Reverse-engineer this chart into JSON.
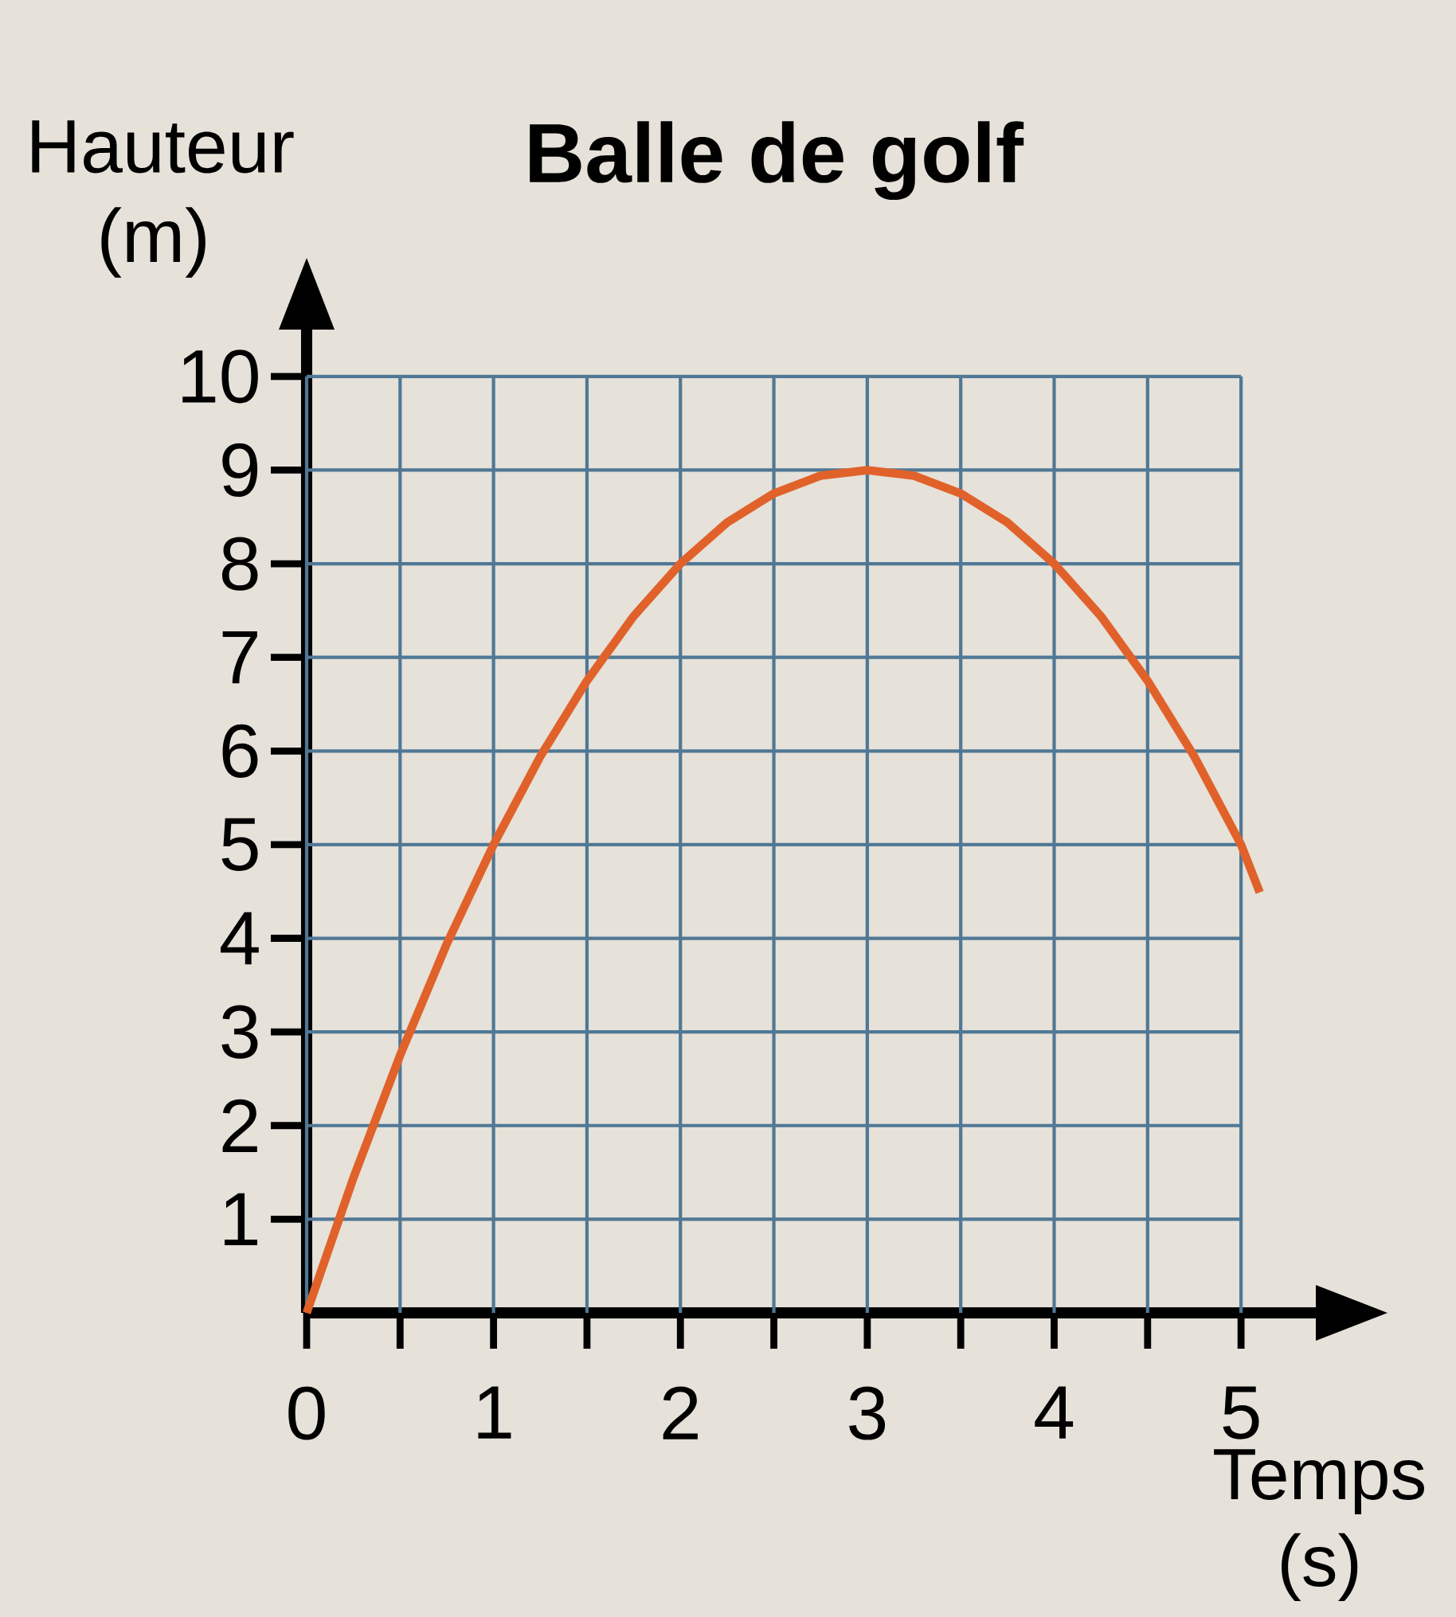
{
  "chart_data": {
    "type": "line",
    "title": "Balle de golf",
    "xlabel": "Temps (s)",
    "ylabel": "Hauteur (m)",
    "x": [
      0,
      0.25,
      0.5,
      0.75,
      1,
      1.25,
      1.5,
      1.75,
      2,
      2.25,
      2.5,
      2.75,
      3,
      3.25,
      3.5,
      3.75,
      4,
      4.25,
      4.5,
      4.75,
      5,
      5.1
    ],
    "series": [
      {
        "color": "#e0622a",
        "values": [
          0,
          1.44,
          2.75,
          3.94,
          5,
          5.94,
          6.75,
          7.44,
          8,
          8.44,
          8.75,
          8.94,
          9,
          8.94,
          8.75,
          8.44,
          8,
          7.44,
          6.75,
          5.94,
          5,
          4.49
        ]
      }
    ],
    "xlim": [
      0,
      5.4
    ],
    "ylim": [
      0,
      10.5
    ],
    "xticks": [
      {
        "value": 0,
        "label": "0"
      },
      {
        "value": 0.5,
        "label": null
      },
      1,
      {
        "value": 1.5,
        "label": null
      },
      2,
      {
        "value": 2.5,
        "label": null
      },
      3,
      {
        "value": 3.5,
        "label": null
      },
      4,
      {
        "value": 4.5,
        "label": null
      },
      5
    ],
    "yticks": [
      1,
      2,
      3,
      4,
      5,
      6,
      7,
      8,
      9,
      10
    ],
    "grid": true,
    "marker": "none",
    "line_style": "solid"
  }
}
